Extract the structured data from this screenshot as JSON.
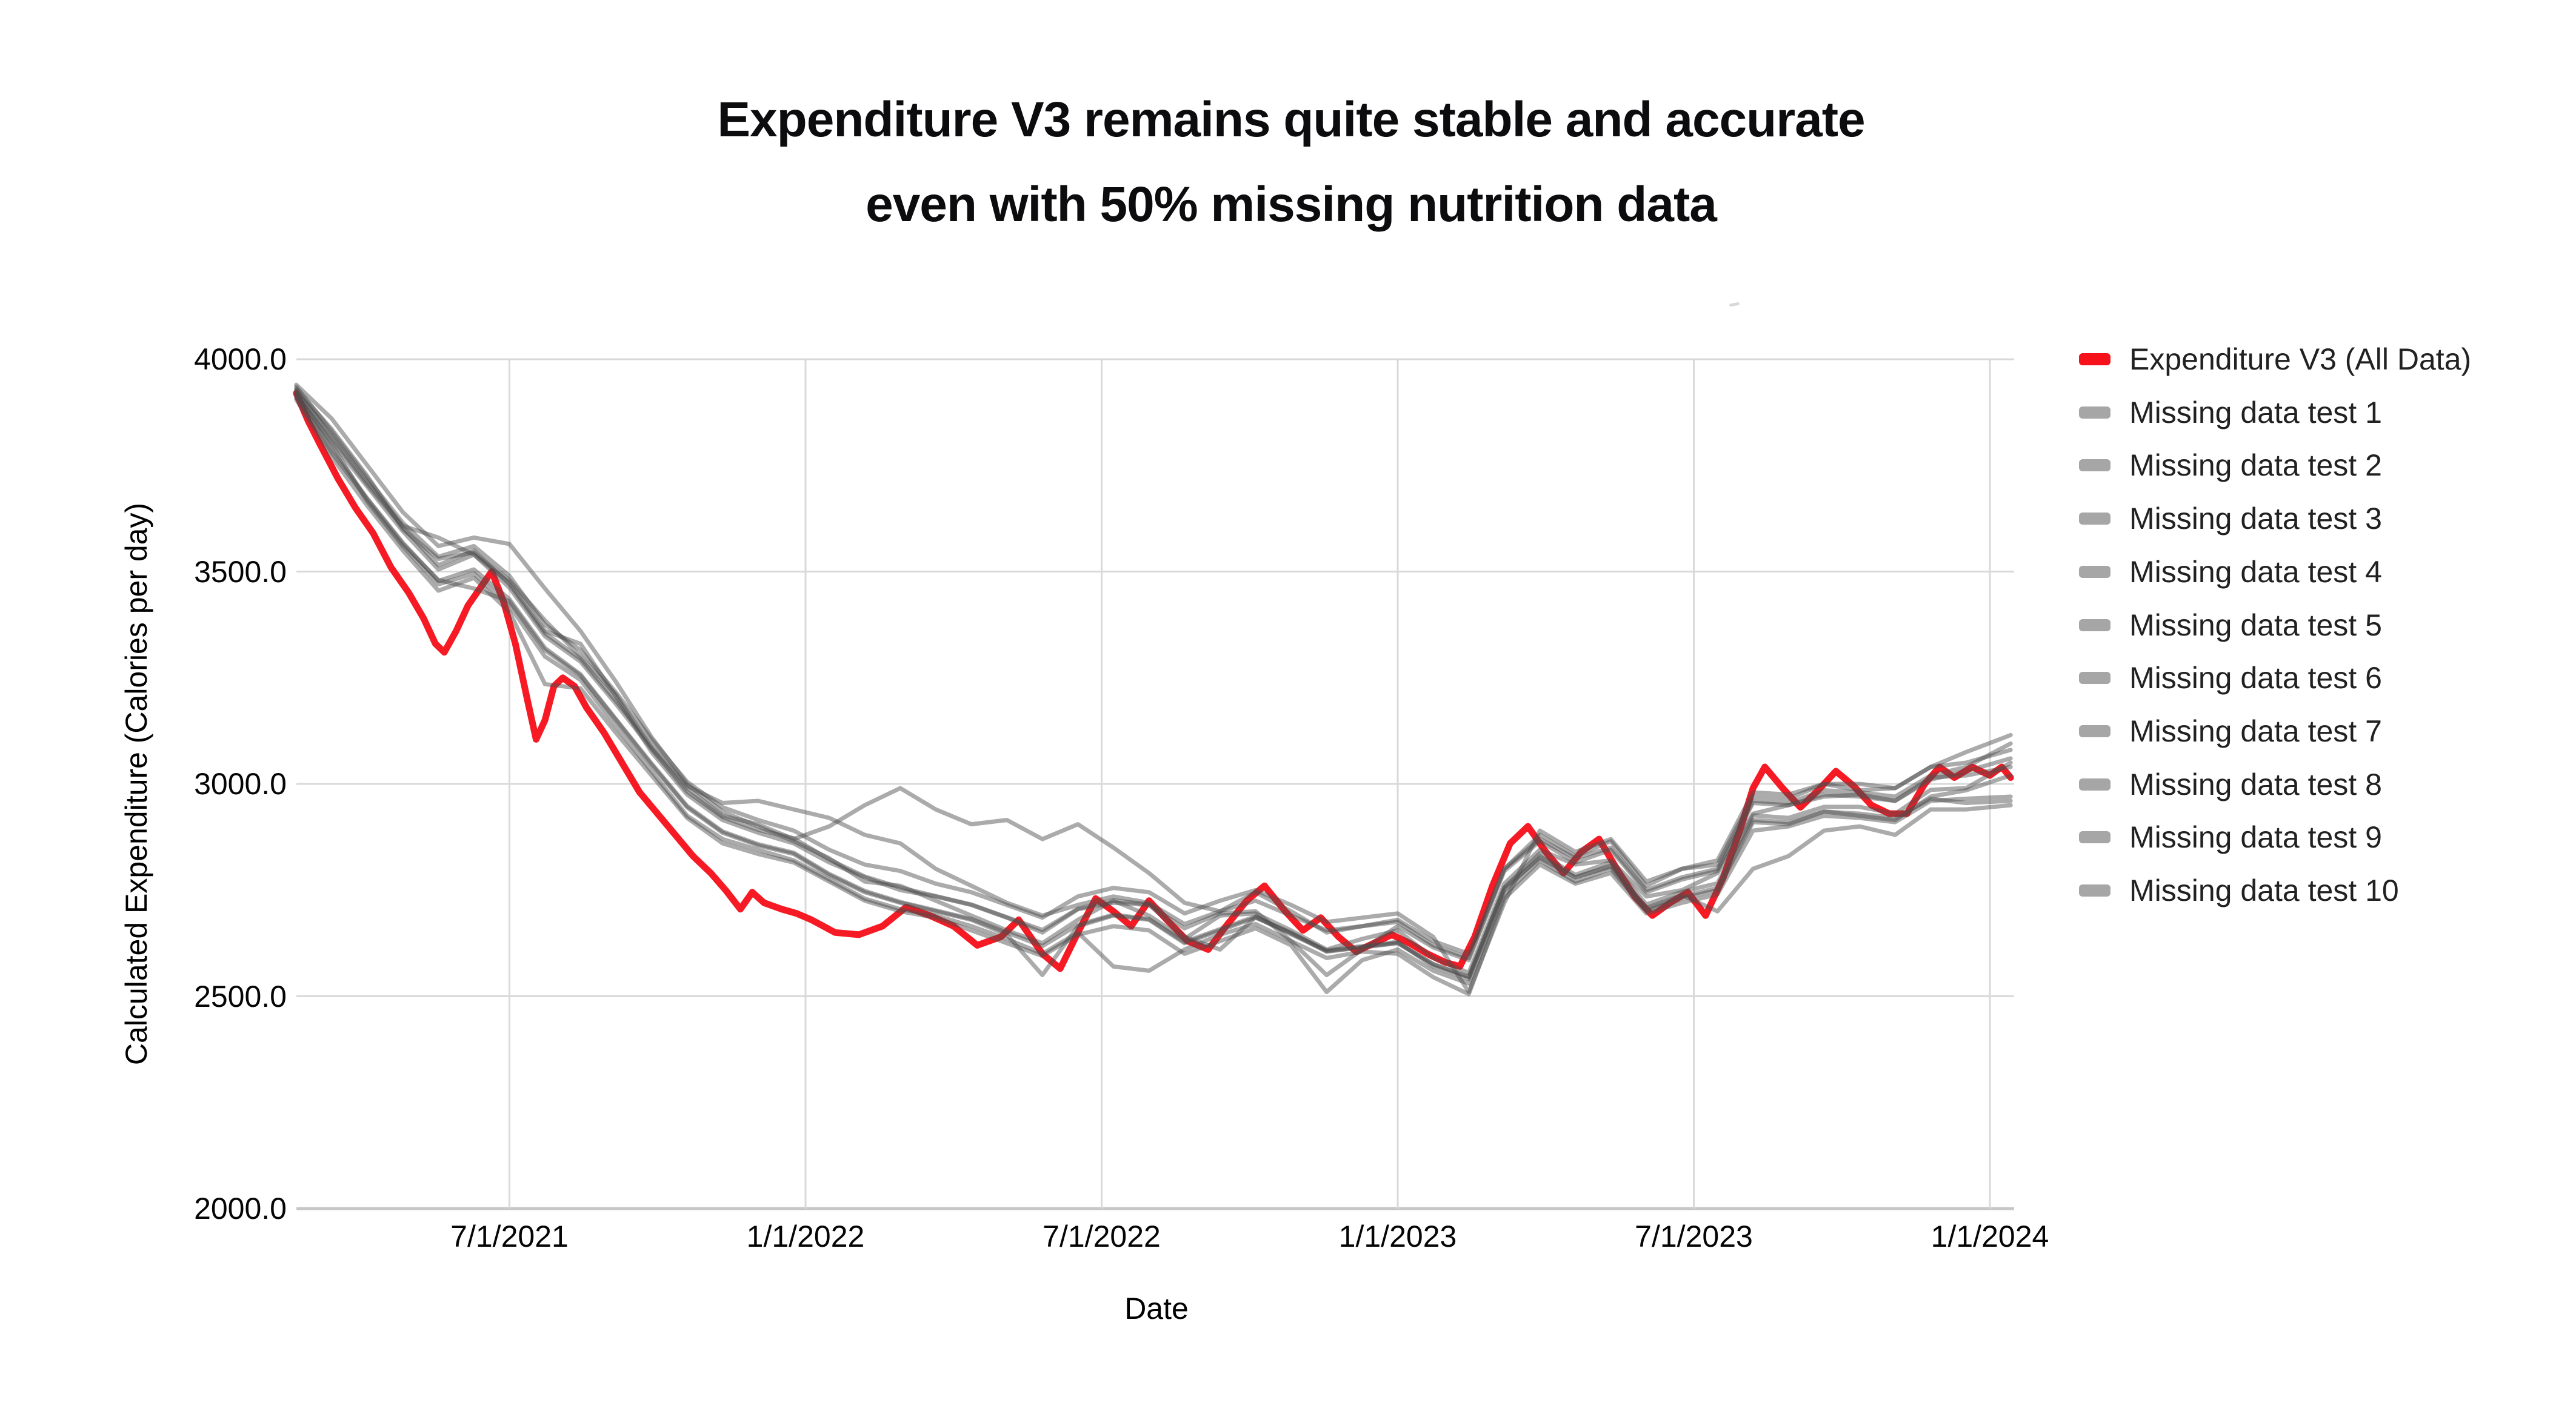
{
  "title": {
    "line1": "Expenditure V3 remains quite stable and accurate",
    "line2": "even with 50% missing nutrition data"
  },
  "axes": {
    "x": {
      "title": "Date",
      "ticks": [
        "7/1/2021",
        "1/1/2022",
        "7/1/2022",
        "1/1/2023",
        "7/1/2023",
        "1/1/2024"
      ],
      "tick_times": [
        2021.5,
        2022.0,
        2022.5,
        2023.0,
        2023.5,
        2024.0
      ]
    },
    "y": {
      "title": "Calculated Expenditure (Calories per day)",
      "ticks": [
        "4000.0",
        "3500.0",
        "3000.0",
        "2500.0",
        "2000.0"
      ],
      "tick_values": [
        4000,
        3500,
        3000,
        2500,
        2000
      ]
    }
  },
  "colors": {
    "accent_red": "#f6111b",
    "gray_line": "#4d4d4d",
    "gray_swatch": "#a6a6a6",
    "gridline": "#d9d9d9",
    "axis_line": "#c7c7c7"
  },
  "chart_data": {
    "type": "line",
    "title": "Expenditure V3 remains quite stable and accurate even with 50% missing nutrition data",
    "xlabel": "Date",
    "ylabel": "Calculated Expenditure (Calories per day)",
    "x_range": [
      2021.14,
      2024.04
    ],
    "y_range": [
      2000,
      4000
    ],
    "grid": true,
    "legend_position": "right",
    "t_grid": [
      2021.14,
      2021.2,
      2021.26,
      2021.32,
      2021.38,
      2021.44,
      2021.5,
      2021.56,
      2021.62,
      2021.68,
      2021.74,
      2021.8,
      2021.86,
      2021.92,
      2021.98,
      2022.04,
      2022.1,
      2022.16,
      2022.22,
      2022.28,
      2022.34,
      2022.4,
      2022.46,
      2022.52,
      2022.58,
      2022.64,
      2022.7,
      2022.76,
      2022.82,
      2022.88,
      2022.94,
      2023.0,
      2023.06,
      2023.12,
      2023.18,
      2023.24,
      2023.3,
      2023.36,
      2023.42,
      2023.48,
      2023.54,
      2023.6,
      2023.66,
      2023.72,
      2023.78,
      2023.84,
      2023.9,
      2023.96,
      2024.035
    ],
    "series": [
      {
        "name": "Expenditure V3 (All Data)",
        "color": "#f6111b",
        "legend_color": "#f6111b",
        "width": 11,
        "opacity": 0.96,
        "points": [
          [
            2021.14,
            3920
          ],
          [
            2021.16,
            3855
          ],
          [
            2021.18,
            3800
          ],
          [
            2021.21,
            3720
          ],
          [
            2021.24,
            3650
          ],
          [
            2021.27,
            3590
          ],
          [
            2021.3,
            3510
          ],
          [
            2021.33,
            3450
          ],
          [
            2021.355,
            3390
          ],
          [
            2021.375,
            3330
          ],
          [
            2021.39,
            3310
          ],
          [
            2021.41,
            3360
          ],
          [
            2021.43,
            3420
          ],
          [
            2021.455,
            3470
          ],
          [
            2021.47,
            3500
          ],
          [
            2021.49,
            3430
          ],
          [
            2021.51,
            3330
          ],
          [
            2021.53,
            3200
          ],
          [
            2021.545,
            3105
          ],
          [
            2021.56,
            3150
          ],
          [
            2021.575,
            3230
          ],
          [
            2021.59,
            3250
          ],
          [
            2021.61,
            3230
          ],
          [
            2021.63,
            3180
          ],
          [
            2021.66,
            3120
          ],
          [
            2021.69,
            3050
          ],
          [
            2021.72,
            2980
          ],
          [
            2021.75,
            2930
          ],
          [
            2021.78,
            2880
          ],
          [
            2021.81,
            2830
          ],
          [
            2021.84,
            2790
          ],
          [
            2021.865,
            2750
          ],
          [
            2021.89,
            2705
          ],
          [
            2021.91,
            2745
          ],
          [
            2021.93,
            2720
          ],
          [
            2021.96,
            2705
          ],
          [
            2021.985,
            2695
          ],
          [
            2022.01,
            2680
          ],
          [
            2022.05,
            2650
          ],
          [
            2022.09,
            2645
          ],
          [
            2022.13,
            2665
          ],
          [
            2022.17,
            2710
          ],
          [
            2022.21,
            2690
          ],
          [
            2022.25,
            2665
          ],
          [
            2022.29,
            2620
          ],
          [
            2022.33,
            2640
          ],
          [
            2022.36,
            2680
          ],
          [
            2022.4,
            2600
          ],
          [
            2022.43,
            2565
          ],
          [
            2022.46,
            2650
          ],
          [
            2022.49,
            2730
          ],
          [
            2022.52,
            2700
          ],
          [
            2022.55,
            2665
          ],
          [
            2022.58,
            2725
          ],
          [
            2022.61,
            2680
          ],
          [
            2022.645,
            2630
          ],
          [
            2022.68,
            2610
          ],
          [
            2022.71,
            2665
          ],
          [
            2022.745,
            2725
          ],
          [
            2022.775,
            2760
          ],
          [
            2022.81,
            2700
          ],
          [
            2022.84,
            2655
          ],
          [
            2022.87,
            2685
          ],
          [
            2022.9,
            2640
          ],
          [
            2022.93,
            2605
          ],
          [
            2022.96,
            2625
          ],
          [
            2022.99,
            2645
          ],
          [
            2023.02,
            2625
          ],
          [
            2023.05,
            2600
          ],
          [
            2023.08,
            2580
          ],
          [
            2023.105,
            2570
          ],
          [
            2023.13,
            2640
          ],
          [
            2023.16,
            2760
          ],
          [
            2023.19,
            2860
          ],
          [
            2023.22,
            2900
          ],
          [
            2023.25,
            2840
          ],
          [
            2023.28,
            2790
          ],
          [
            2023.31,
            2840
          ],
          [
            2023.34,
            2870
          ],
          [
            2023.37,
            2800
          ],
          [
            2023.4,
            2735
          ],
          [
            2023.43,
            2690
          ],
          [
            2023.46,
            2720
          ],
          [
            2023.49,
            2745
          ],
          [
            2023.52,
            2690
          ],
          [
            2023.55,
            2780
          ],
          [
            2023.58,
            2900
          ],
          [
            2023.6,
            2990
          ],
          [
            2023.62,
            3040
          ],
          [
            2023.65,
            2990
          ],
          [
            2023.68,
            2945
          ],
          [
            2023.71,
            2985
          ],
          [
            2023.74,
            3030
          ],
          [
            2023.77,
            2995
          ],
          [
            2023.8,
            2950
          ],
          [
            2023.83,
            2930
          ],
          [
            2023.86,
            2930
          ],
          [
            2023.89,
            3000
          ],
          [
            2023.915,
            3040
          ],
          [
            2023.94,
            3015
          ],
          [
            2023.97,
            3040
          ],
          [
            2024.0,
            3020
          ],
          [
            2024.02,
            3040
          ],
          [
            2024.035,
            3015
          ]
        ]
      },
      {
        "name": "Missing data test 1",
        "color": "#4d4d4d",
        "legend_color": "#a6a6a6",
        "width": 7,
        "opacity": 0.47,
        "values": [
          3930,
          3835,
          3725,
          3600,
          3530,
          3545,
          3480,
          3385,
          3300,
          3210,
          3085,
          2990,
          2925,
          2905,
          2870,
          2900,
          2950,
          2990,
          2940,
          2905,
          2915,
          2870,
          2905,
          2850,
          2790,
          2720,
          2700,
          2745,
          2700,
          2650,
          2665,
          2680,
          2630,
          2600,
          2800,
          2880,
          2830,
          2865,
          2760,
          2800,
          2810,
          2970,
          2965,
          3000,
          2985,
          2990,
          3040,
          3075,
          3115
        ]
      },
      {
        "name": "Missing data test 2",
        "color": "#4d4d4d",
        "legend_color": "#a6a6a6",
        "width": 7,
        "opacity": 0.47,
        "values": [
          3940,
          3860,
          3750,
          3640,
          3560,
          3580,
          3565,
          3460,
          3360,
          3240,
          3110,
          3000,
          2935,
          2900,
          2865,
          2825,
          2770,
          2760,
          2725,
          2690,
          2655,
          2625,
          2680,
          2725,
          2690,
          2635,
          2690,
          2695,
          2655,
          2610,
          2635,
          2655,
          2590,
          2555,
          2765,
          2845,
          2810,
          2820,
          2735,
          2750,
          2790,
          2930,
          2950,
          2970,
          2975,
          2960,
          3010,
          3030,
          3060
        ]
      },
      {
        "name": "Missing data test 3",
        "color": "#4d4d4d",
        "legend_color": "#a6a6a6",
        "width": 7,
        "opacity": 0.47,
        "values": [
          3920,
          3800,
          3665,
          3560,
          3470,
          3495,
          3420,
          3300,
          3245,
          3135,
          3030,
          2925,
          2870,
          2845,
          2820,
          2775,
          2730,
          2705,
          2690,
          2665,
          2635,
          2600,
          2650,
          2570,
          2560,
          2610,
          2645,
          2670,
          2630,
          2590,
          2605,
          2600,
          2545,
          2505,
          2730,
          2810,
          2765,
          2790,
          2695,
          2720,
          2740,
          2890,
          2900,
          2925,
          2920,
          2910,
          2960,
          2965,
          2970
        ]
      },
      {
        "name": "Missing data test 4",
        "color": "#4d4d4d",
        "legend_color": "#a6a6a6",
        "width": 7,
        "opacity": 0.47,
        "values": [
          3915,
          3805,
          3700,
          3595,
          3505,
          3540,
          3475,
          3360,
          3330,
          3205,
          3075,
          2975,
          2915,
          2885,
          2860,
          2815,
          2780,
          2750,
          2735,
          2715,
          2685,
          2650,
          2705,
          2720,
          2715,
          2660,
          2695,
          2700,
          2630,
          2550,
          2610,
          2665,
          2615,
          2585,
          2795,
          2865,
          2815,
          2845,
          2745,
          2775,
          2795,
          2955,
          2950,
          2975,
          2970,
          2960,
          3015,
          3020,
          3040
        ]
      },
      {
        "name": "Missing data test 5",
        "color": "#4d4d4d",
        "legend_color": "#a6a6a6",
        "width": 7,
        "opacity": 0.47,
        "values": [
          3910,
          3780,
          3670,
          3565,
          3480,
          3460,
          3430,
          3315,
          3255,
          3150,
          3045,
          2945,
          2885,
          2855,
          2835,
          2785,
          2745,
          2720,
          2700,
          2680,
          2645,
          2550,
          2665,
          2690,
          2680,
          2625,
          2655,
          2685,
          2650,
          2605,
          2615,
          2625,
          2575,
          2545,
          2755,
          2825,
          2780,
          2805,
          2705,
          2735,
          2755,
          2915,
          2910,
          2935,
          2930,
          2920,
          2965,
          2955,
          2960
        ]
      },
      {
        "name": "Missing data test 6",
        "color": "#4d4d4d",
        "legend_color": "#a6a6a6",
        "width": 7,
        "opacity": 0.47,
        "values": [
          3935,
          3830,
          3720,
          3615,
          3535,
          3560,
          3490,
          3375,
          3315,
          3215,
          3105,
          3005,
          2945,
          2915,
          2890,
          2845,
          2810,
          2795,
          2765,
          2745,
          2715,
          2685,
          2735,
          2755,
          2745,
          2695,
          2725,
          2750,
          2715,
          2675,
          2685,
          2695,
          2640,
          2510,
          2720,
          2890,
          2840,
          2870,
          2770,
          2800,
          2820,
          2980,
          2975,
          3000,
          3000,
          2990,
          3040,
          3050,
          3080
        ]
      },
      {
        "name": "Missing data test 7",
        "color": "#4d4d4d",
        "legend_color": "#a6a6a6",
        "width": 7,
        "opacity": 0.47,
        "values": [
          3905,
          3770,
          3655,
          3550,
          3455,
          3485,
          3405,
          3235,
          3225,
          3120,
          3020,
          2920,
          2860,
          2835,
          2815,
          2770,
          2725,
          2700,
          2685,
          2655,
          2625,
          2595,
          2645,
          2665,
          2655,
          2600,
          2630,
          2660,
          2620,
          2510,
          2585,
          2610,
          2560,
          2530,
          2740,
          2820,
          2770,
          2800,
          2700,
          2730,
          2750,
          2910,
          2905,
          2935,
          2925,
          2915,
          2970,
          2985,
          3020
        ]
      },
      {
        "name": "Missing data test 8",
        "color": "#4d4d4d",
        "legend_color": "#a6a6a6",
        "width": 7,
        "opacity": 0.47,
        "values": [
          3925,
          3815,
          3705,
          3605,
          3515,
          3550,
          3470,
          3355,
          3295,
          3195,
          3090,
          2995,
          2955,
          2960,
          2940,
          2920,
          2880,
          2860,
          2800,
          2760,
          2720,
          2690,
          2715,
          2735,
          2720,
          2670,
          2700,
          2725,
          2690,
          2655,
          2665,
          2675,
          2620,
          2590,
          2800,
          2870,
          2825,
          2850,
          2750,
          2780,
          2800,
          2960,
          2955,
          2985,
          2980,
          2970,
          3020,
          3040,
          3095
        ]
      },
      {
        "name": "Missing data test 9",
        "color": "#4d4d4d",
        "legend_color": "#a6a6a6",
        "width": 7,
        "opacity": 0.47,
        "values": [
          3918,
          3788,
          3672,
          3568,
          3478,
          3505,
          3435,
          3320,
          3258,
          3152,
          3048,
          2948,
          2888,
          2858,
          2838,
          2788,
          2748,
          2722,
          2702,
          2682,
          2650,
          2618,
          2668,
          2692,
          2682,
          2628,
          2658,
          2688,
          2648,
          2608,
          2618,
          2628,
          2570,
          2540,
          2750,
          2830,
          2780,
          2808,
          2708,
          2738,
          2700,
          2800,
          2830,
          2890,
          2900,
          2880,
          2940,
          2940,
          2950
        ]
      },
      {
        "name": "Missing data test 10",
        "color": "#4d4d4d",
        "legend_color": "#a6a6a6",
        "width": 7,
        "opacity": 0.47,
        "values": [
          3928,
          3820,
          3712,
          3608,
          3580,
          3540,
          3462,
          3348,
          3288,
          3188,
          3082,
          2982,
          2922,
          2892,
          2872,
          2822,
          2782,
          2756,
          2736,
          2716,
          2686,
          2656,
          2706,
          2726,
          2716,
          2640,
          2610,
          2686,
          2646,
          2606,
          2616,
          2626,
          2576,
          2546,
          2756,
          2836,
          2786,
          2816,
          2716,
          2746,
          2766,
          2926,
          2920,
          2946,
          2946,
          2930,
          2986,
          2990,
          3050
        ]
      }
    ]
  }
}
